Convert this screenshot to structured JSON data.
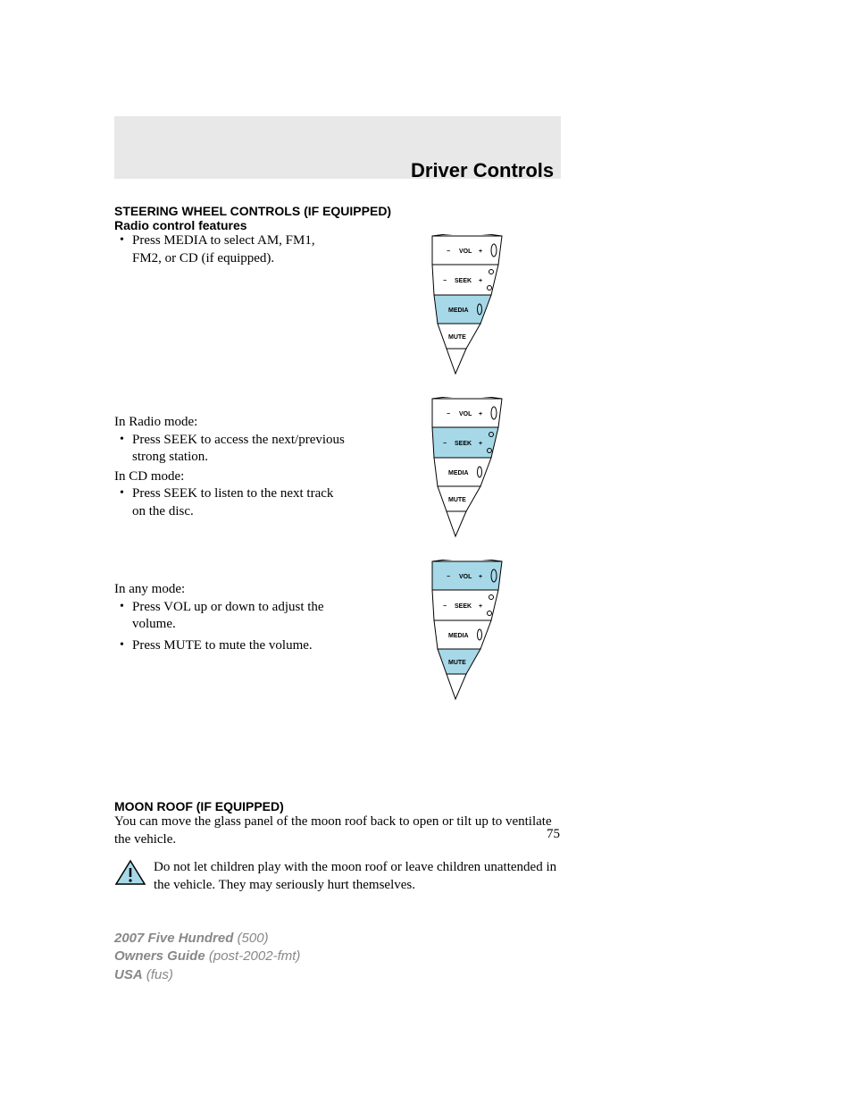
{
  "colors": {
    "header_bar": "#e8e8e8",
    "highlight": "#a6d8e8",
    "stroke": "#000000",
    "page_bg": "#ffffff",
    "footer_text": "#888888"
  },
  "header": {
    "title": "Driver Controls"
  },
  "section1": {
    "heading": "STEERING WHEEL CONTROLS (IF EQUIPPED)",
    "subheading": "Radio control features",
    "bullet1": "Press MEDIA to select AM, FM1, FM2, or CD (if equipped).",
    "radio_intro": "In Radio mode:",
    "radio_bullet": "Press SEEK to access the next/previous strong station.",
    "cd_intro": "In CD mode:",
    "cd_bullet": "Press SEEK to listen to the next track on the disc.",
    "any_intro": "In any mode:",
    "any_bullet1": "Press VOL up or down to adjust the volume.",
    "any_bullet2": "Press MUTE to mute the volume."
  },
  "section2": {
    "heading": "MOON ROOF (IF EQUIPPED)",
    "body": "You can move the glass panel of the moon roof back to open or tilt up to ventilate the vehicle.",
    "warning": "Do not let children play with the moon roof or leave children unattended in the vehicle. They may seriously hurt themselves."
  },
  "page_number": "75",
  "footer": {
    "line1_bold": "2007 Five Hundred",
    "line1_ital": "(500)",
    "line2_bold": "Owners Guide",
    "line2_ital": "(post-2002-fmt)",
    "line3_bold": "USA",
    "line3_ital": "(fus)"
  },
  "diagram": {
    "labels": {
      "vol": "VOL",
      "seek": "SEEK",
      "media": "MEDIA",
      "mute": "MUTE"
    },
    "label_fontsize": 7,
    "label_fontfamily": "Arial",
    "label_fontweight": "bold",
    "minus": "−",
    "plus": "+",
    "outline_stroke": "#000000",
    "highlight_fill": "#a6d8e8",
    "plain_fill": "#ffffff",
    "variants": [
      {
        "highlight_rows": [
          "media"
        ]
      },
      {
        "highlight_rows": [
          "seek"
        ]
      },
      {
        "highlight_rows": [
          "vol",
          "mute"
        ]
      }
    ]
  }
}
